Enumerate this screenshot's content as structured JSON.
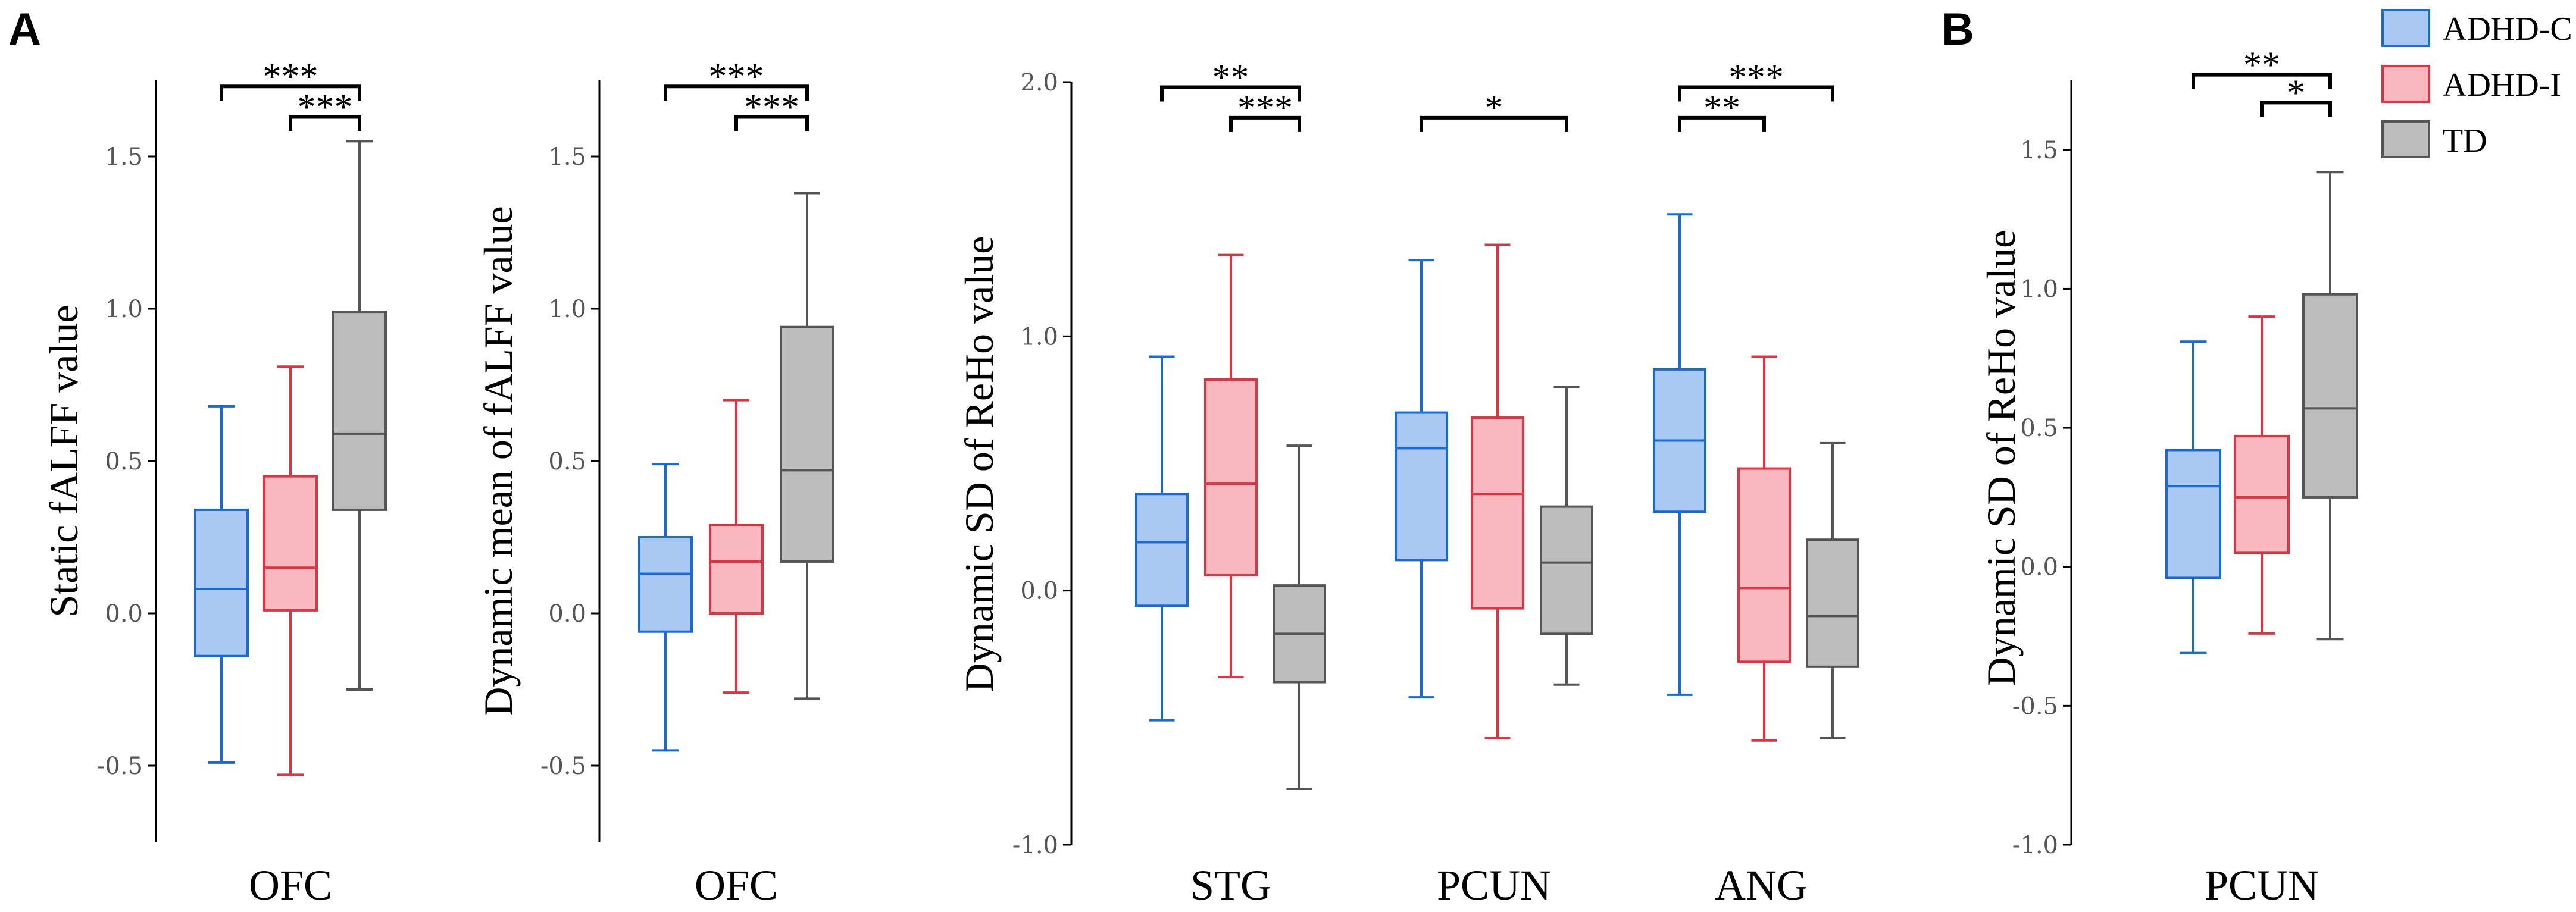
{
  "figure": {
    "panel_labels": [
      "A",
      "B"
    ],
    "legend": [
      {
        "label": "ADHD-C",
        "fill": "#a9c8f2",
        "stroke": "#1a6ad6"
      },
      {
        "label": "ADHD-I",
        "fill": "#f7b9bf",
        "stroke": "#e0323f"
      },
      {
        "label": "TD",
        "fill": "#bdbdbd",
        "stroke": "#555555"
      }
    ]
  },
  "chart_data": [
    {
      "type": "box",
      "panel": "A",
      "ylabel": "Static fALFF value",
      "ylim": [
        -0.75,
        1.75
      ],
      "yticks": [
        -0.5,
        0.0,
        0.5,
        1.0,
        1.5
      ],
      "ytick_labels": [
        "-0.5",
        "0.0",
        "0.5",
        "1.0",
        "1.5"
      ],
      "categories": [
        "OFC"
      ],
      "groups": [
        {
          "category": "OFC",
          "series": "ADHD-C",
          "min": -0.49,
          "q1": -0.14,
          "median": 0.08,
          "q3": 0.34,
          "max": 0.68
        },
        {
          "category": "OFC",
          "series": "ADHD-I",
          "min": -0.53,
          "q1": 0.01,
          "median": 0.15,
          "q3": 0.45,
          "max": 0.81
        },
        {
          "category": "OFC",
          "series": "TD",
          "min": -0.25,
          "q1": 0.34,
          "median": 0.59,
          "q3": 0.99,
          "max": 1.55
        }
      ],
      "significance": [
        {
          "from": "ADHD-C",
          "to": "TD",
          "label": "***",
          "level": 1.73
        },
        {
          "from": "ADHD-I",
          "to": "TD",
          "label": "***",
          "level": 1.63
        }
      ]
    },
    {
      "type": "box",
      "panel": "A",
      "ylabel": "Dynamic mean of  fALFF value",
      "ylim": [
        -0.75,
        1.75
      ],
      "yticks": [
        -0.5,
        0.0,
        0.5,
        1.0,
        1.5
      ],
      "ytick_labels": [
        "-0.5",
        "0.0",
        "0.5",
        "1.0",
        "1.5"
      ],
      "categories": [
        "OFC"
      ],
      "groups": [
        {
          "category": "OFC",
          "series": "ADHD-C",
          "min": -0.45,
          "q1": -0.06,
          "median": 0.13,
          "q3": 0.25,
          "max": 0.49
        },
        {
          "category": "OFC",
          "series": "ADHD-I",
          "min": -0.26,
          "q1": 0.0,
          "median": 0.17,
          "q3": 0.29,
          "max": 0.7
        },
        {
          "category": "OFC",
          "series": "TD",
          "min": -0.28,
          "q1": 0.17,
          "median": 0.47,
          "q3": 0.94,
          "max": 1.38
        }
      ],
      "significance": [
        {
          "from": "ADHD-C",
          "to": "TD",
          "label": "***",
          "level": 1.73
        },
        {
          "from": "ADHD-I",
          "to": "TD",
          "label": "***",
          "level": 1.63
        }
      ]
    },
    {
      "type": "box",
      "panel": "A",
      "ylabel": "Dynamic SD of ReHo value",
      "ylim": [
        -1.0,
        2.0
      ],
      "yticks": [
        -1.0,
        0.0,
        1.0,
        2.0
      ],
      "ytick_labels": [
        "-1.0",
        "0.0",
        "1.0",
        "2.0"
      ],
      "categories": [
        "STG",
        "PCUN",
        "ANG"
      ],
      "groups": [
        {
          "category": "STG",
          "series": "ADHD-C",
          "min": -0.51,
          "q1": -0.06,
          "median": 0.19,
          "q3": 0.38,
          "max": 0.92
        },
        {
          "category": "STG",
          "series": "ADHD-I",
          "min": -0.34,
          "q1": 0.06,
          "median": 0.42,
          "q3": 0.83,
          "max": 1.32
        },
        {
          "category": "STG",
          "series": "TD",
          "min": -0.78,
          "q1": -0.36,
          "median": -0.17,
          "q3": 0.02,
          "max": 0.57
        },
        {
          "category": "PCUN",
          "series": "ADHD-C",
          "min": -0.42,
          "q1": 0.12,
          "median": 0.56,
          "q3": 0.7,
          "max": 1.3
        },
        {
          "category": "PCUN",
          "series": "ADHD-I",
          "min": -0.58,
          "q1": -0.07,
          "median": 0.38,
          "q3": 0.68,
          "max": 1.36
        },
        {
          "category": "PCUN",
          "series": "TD",
          "min": -0.37,
          "q1": -0.17,
          "median": 0.11,
          "q3": 0.33,
          "max": 0.8
        },
        {
          "category": "ANG",
          "series": "ADHD-C",
          "min": -0.41,
          "q1": 0.31,
          "median": 0.59,
          "q3": 0.87,
          "max": 1.48
        },
        {
          "category": "ANG",
          "series": "ADHD-I",
          "min": -0.59,
          "q1": -0.28,
          "median": 0.01,
          "q3": 0.48,
          "max": 0.92
        },
        {
          "category": "ANG",
          "series": "TD",
          "min": -0.58,
          "q1": -0.3,
          "median": -0.1,
          "q3": 0.2,
          "max": 0.58
        }
      ],
      "significance": [
        {
          "category": "STG",
          "from": "ADHD-C",
          "to": "TD",
          "label": "**",
          "level": 1.98
        },
        {
          "category": "STG",
          "from": "ADHD-I",
          "to": "TD",
          "label": "***",
          "level": 1.86
        },
        {
          "category": "PCUN",
          "from": "ADHD-C",
          "to": "TD",
          "label": "*",
          "level": 1.86
        },
        {
          "category": "ANG",
          "from": "ADHD-C",
          "to": "TD",
          "label": "***",
          "level": 1.98
        },
        {
          "category": "ANG",
          "from": "ADHD-C",
          "to": "ADHD-I",
          "label": "**",
          "level": 1.86
        }
      ]
    },
    {
      "type": "box",
      "panel": "B",
      "ylabel": "Dynamic SD of ReHo value",
      "ylim": [
        -1.0,
        1.75
      ],
      "yticks": [
        -1.0,
        -0.5,
        0.0,
        0.5,
        1.0,
        1.5
      ],
      "ytick_labels": [
        "-1.0",
        "-0.5",
        "0.0",
        "0.5",
        "1.0",
        "1.5"
      ],
      "categories": [
        "PCUN"
      ],
      "groups": [
        {
          "category": "PCUN",
          "series": "ADHD-C",
          "min": -0.31,
          "q1": -0.04,
          "median": 0.29,
          "q3": 0.42,
          "max": 0.81
        },
        {
          "category": "PCUN",
          "series": "ADHD-I",
          "min": -0.24,
          "q1": 0.05,
          "median": 0.25,
          "q3": 0.47,
          "max": 0.9
        },
        {
          "category": "PCUN",
          "series": "TD",
          "min": -0.26,
          "q1": 0.25,
          "median": 0.57,
          "q3": 0.98,
          "max": 1.42
        }
      ],
      "significance": [
        {
          "from": "ADHD-C",
          "to": "TD",
          "label": "**",
          "level": 1.77
        },
        {
          "from": "ADHD-I",
          "to": "TD",
          "label": "*",
          "level": 1.67
        }
      ]
    }
  ]
}
